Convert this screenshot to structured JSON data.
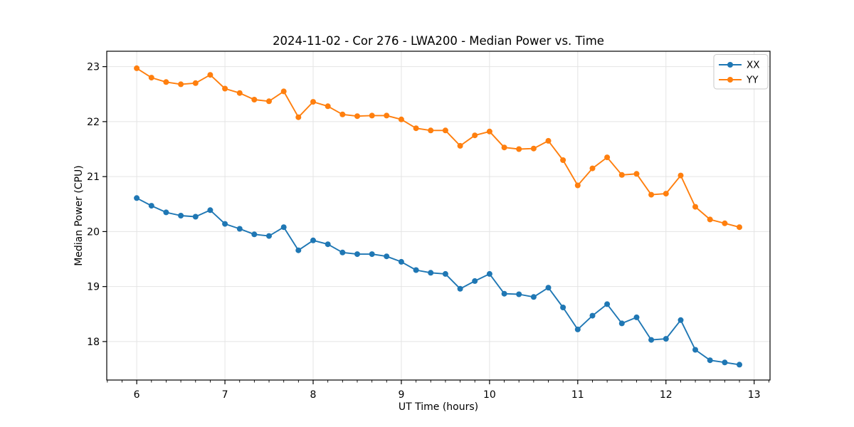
{
  "figure": {
    "title": "2024-11-02 - Cor 276 - LWA200 - Median Power vs. Time",
    "xlabel": "UT Time (hours)",
    "ylabel": "Median Power (CPU)"
  },
  "legend": {
    "entries": [
      "XX",
      "YY"
    ]
  },
  "colors": {
    "series_xx": "#1f77b4",
    "series_yy": "#ff7f0e",
    "grid": "#e4e4e4",
    "spine": "#000000",
    "legend_border": "#c9c9c9",
    "background": "#ffffff"
  },
  "chart_data": {
    "type": "line",
    "title": "2024-11-02 - Cor 276 - LWA200 - Median Power vs. Time",
    "xlabel": "UT Time (hours)",
    "ylabel": "Median Power (CPU)",
    "grid": true,
    "legend_position": "upper right",
    "xlim": [
      5.66,
      13.18
    ],
    "ylim": [
      17.3,
      23.28
    ],
    "x_ticks": [
      6,
      7,
      8,
      9,
      10,
      11,
      12,
      13
    ],
    "y_ticks": [
      18,
      19,
      20,
      21,
      22,
      23
    ],
    "x_minor_tick_step": 0.1667,
    "x": [
      6.0,
      6.167,
      6.333,
      6.5,
      6.667,
      6.833,
      7.0,
      7.167,
      7.333,
      7.5,
      7.667,
      7.833,
      8.0,
      8.167,
      8.333,
      8.5,
      8.667,
      8.833,
      9.0,
      9.167,
      9.333,
      9.5,
      9.667,
      9.833,
      10.0,
      10.167,
      10.333,
      10.5,
      10.667,
      10.833,
      11.0,
      11.167,
      11.333,
      11.5,
      11.667,
      11.833,
      12.0,
      12.167,
      12.333,
      12.5,
      12.667,
      12.833
    ],
    "series": [
      {
        "name": "XX",
        "color": "#1f77b4",
        "values": [
          20.61,
          20.47,
          20.35,
          20.29,
          20.27,
          20.39,
          20.14,
          20.05,
          19.95,
          19.92,
          20.08,
          19.66,
          19.84,
          19.77,
          19.62,
          19.59,
          19.59,
          19.55,
          19.45,
          19.3,
          19.25,
          19.23,
          18.96,
          19.1,
          19.23,
          18.87,
          18.86,
          18.81,
          18.98,
          18.62,
          18.22,
          18.47,
          18.68,
          18.33,
          18.44,
          18.03,
          18.05,
          18.39,
          17.85,
          17.66,
          17.62,
          17.58
        ]
      },
      {
        "name": "YY",
        "color": "#ff7f0e",
        "values": [
          22.97,
          22.8,
          22.72,
          22.68,
          22.7,
          22.85,
          22.6,
          22.52,
          22.4,
          22.37,
          22.55,
          22.08,
          22.36,
          22.28,
          22.13,
          22.1,
          22.11,
          22.11,
          22.04,
          21.88,
          21.84,
          21.84,
          21.56,
          21.75,
          21.82,
          21.53,
          21.5,
          21.51,
          21.65,
          21.3,
          20.84,
          21.15,
          21.35,
          21.03,
          21.05,
          20.67,
          20.69,
          21.02,
          20.45,
          20.22,
          20.15,
          20.08
        ]
      }
    ]
  }
}
